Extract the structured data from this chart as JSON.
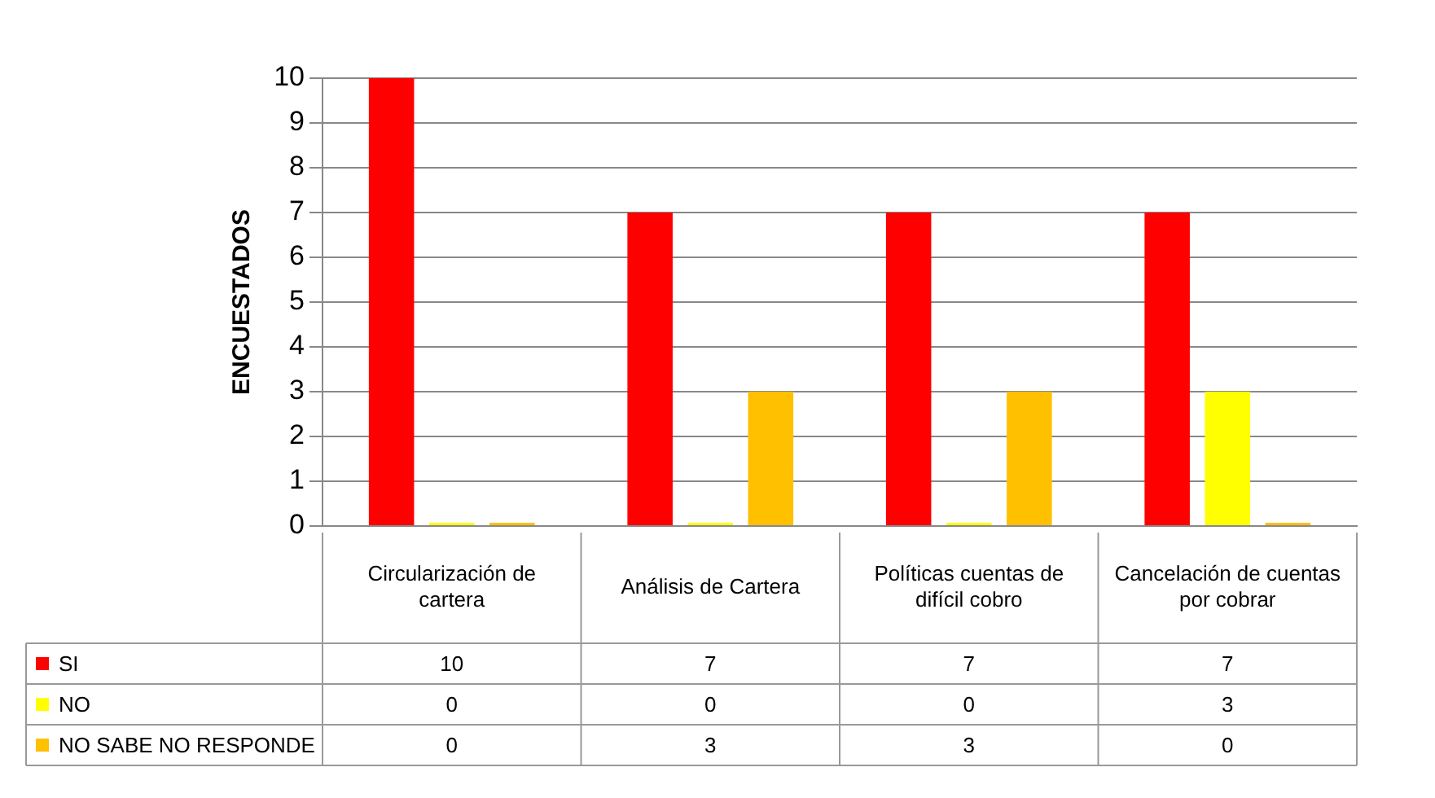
{
  "chart_data": {
    "type": "bar",
    "ylabel": "ENCUESTADOS",
    "categories": [
      "Circularización de cartera",
      "Análisis de Cartera",
      "Políticas cuentas de difícil cobro",
      "Cancelación de cuentas por cobrar"
    ],
    "series": [
      {
        "name": "SI",
        "color": "#ff0000",
        "values": [
          10,
          7,
          7,
          7
        ]
      },
      {
        "name": "NO",
        "color": "#ffff00",
        "values": [
          0,
          0,
          0,
          3
        ]
      },
      {
        "name": "NO SABE NO RESPONDE",
        "color": "#ffc000",
        "values": [
          0,
          3,
          3,
          0
        ]
      }
    ],
    "ylim": [
      0,
      10
    ],
    "yticks": [
      0,
      1,
      2,
      3,
      4,
      5,
      6,
      7,
      8,
      9,
      10
    ],
    "grid": "y",
    "legend": "bottom",
    "data_labels": true
  }
}
